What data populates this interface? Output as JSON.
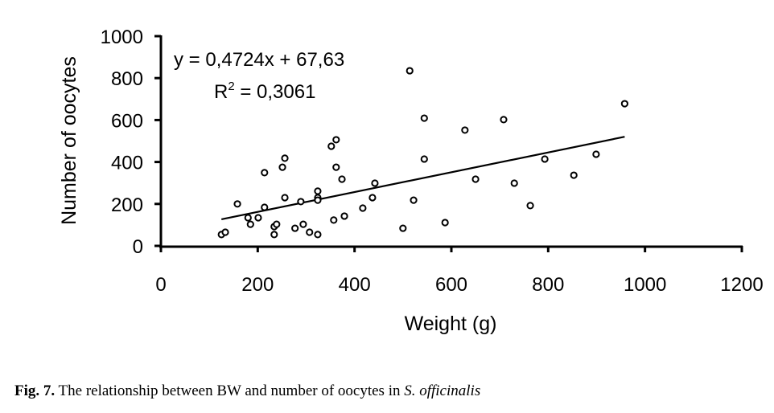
{
  "chart_data": {
    "type": "scatter",
    "xlabel": "Weight (g)",
    "ylabel": "Number of oocytes",
    "xlim": [
      0,
      1200
    ],
    "ylim": [
      0,
      1000
    ],
    "xticks": [
      0,
      200,
      400,
      600,
      800,
      1000,
      1200
    ],
    "yticks": [
      0,
      200,
      400,
      600,
      800,
      1000
    ],
    "grid": false,
    "equation": "y = 0,4724x + 67,63",
    "r2_prefix": "R",
    "r2_sup": "2",
    "r2_value": " = 0,3061",
    "trendline": {
      "slope": 0.4724,
      "intercept": 67.63,
      "x_range": [
        125,
        958
      ]
    },
    "points": [
      [
        125,
        54
      ],
      [
        133,
        65
      ],
      [
        158,
        200
      ],
      [
        180,
        134
      ],
      [
        185,
        103
      ],
      [
        201,
        134
      ],
      [
        214,
        349
      ],
      [
        214,
        184
      ],
      [
        234,
        92
      ],
      [
        239,
        103
      ],
      [
        234,
        54
      ],
      [
        251,
        375
      ],
      [
        256,
        418
      ],
      [
        256,
        230
      ],
      [
        277,
        84
      ],
      [
        289,
        211
      ],
      [
        294,
        103
      ],
      [
        307,
        65
      ],
      [
        324,
        261
      ],
      [
        324,
        230
      ],
      [
        324,
        218
      ],
      [
        324,
        54
      ],
      [
        352,
        475
      ],
      [
        362,
        506
      ],
      [
        362,
        375
      ],
      [
        374,
        318
      ],
      [
        357,
        123
      ],
      [
        379,
        142
      ],
      [
        417,
        180
      ],
      [
        437,
        230
      ],
      [
        442,
        299
      ],
      [
        514,
        835
      ],
      [
        544,
        609
      ],
      [
        544,
        414
      ],
      [
        522,
        218
      ],
      [
        500,
        84
      ],
      [
        587,
        111
      ],
      [
        628,
        552
      ],
      [
        650,
        318
      ],
      [
        708,
        602
      ],
      [
        730,
        299
      ],
      [
        763,
        192
      ],
      [
        793,
        414
      ],
      [
        853,
        337
      ],
      [
        899,
        437
      ],
      [
        958,
        678
      ]
    ]
  },
  "caption": {
    "label": "Fig. 7.",
    "text": " The relationship between BW and number of oocytes in ",
    "species": "S. officinalis"
  }
}
